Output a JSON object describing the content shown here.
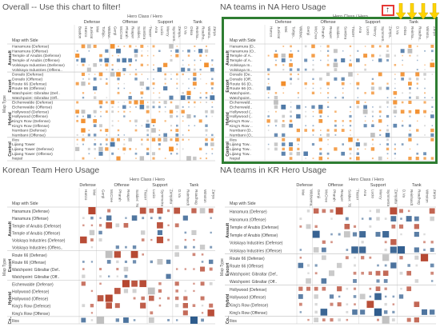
{
  "panels": [
    {
      "id": "overall",
      "title": "Overall -- Use this chart to filter!",
      "hero_class_header": "Hero Class / Hero",
      "row_header": "Map with Side",
      "map_type_label": "Map Type",
      "classes": [
        {
          "name": "Defense",
          "heroes": [
            "Bastion",
            "Hanzo",
            "Junkrat",
            "Mei",
            "Torbjo..",
            "Widow.."
          ]
        },
        {
          "name": "Offense",
          "heroes": [
            "Genji",
            "McCree",
            "Pharah",
            "Reaper",
            "Soldier..",
            "Sombra",
            "Tracer"
          ]
        },
        {
          "name": "Support",
          "heroes": [
            "Ana",
            "Lucio",
            "Mercy",
            "Symmetr..",
            "Zenya.."
          ]
        },
        {
          "name": "Tank",
          "heroes": [
            "D.Va",
            "Orisa",
            "Reinha..",
            "Roadho..",
            "Winsto..",
            "Zarya"
          ]
        }
      ],
      "groups": [
        {
          "name": "Assault",
          "rows": [
            "Hanamura (Defense)",
            "Hanamura (Offense)",
            "Temple of Anubis (Defense)",
            "Temple of Anubis (Offense)",
            "Volskaya Industries (Defense)",
            "Volskaya Industries (Offens.."
          ]
        },
        {
          "name": "Escort",
          "rows": [
            "Dorado (Defense)",
            "Dorado (Offense)",
            "Route 66 (Defense)",
            "Route 66 (Offense)",
            "Watchpoint: Gibraltar (Def..",
            "Watchpoint: Gibraltar (Off.."
          ]
        },
        {
          "name": "Hybrid",
          "rows": [
            "Eichenwalde (Defense)",
            "Eichenwalde (Offense)",
            "Hollywood (Defense)",
            "Hollywood (Offense)",
            "King's Row (Defense)",
            "King's Row (Offense)",
            "Numbani (Defense)",
            "Numbani (Offense)"
          ]
        },
        {
          "name": "Control",
          "rows": [
            "Ilios",
            "Lijiang Tower",
            "Lijiang Tower (Defense)",
            "Lijiang Tower (Offense)",
            "Nepal"
          ]
        }
      ],
      "seed": 7
    },
    {
      "id": "na",
      "title": "NA teams in NA Hero Usage",
      "hero_class_header": "Hero Class / Hero",
      "row_header": "Map with Side",
      "map_type_label": "",
      "classes": [
        {
          "name": "Defense",
          "heroes": [
            "Hanzo",
            "Junkrat",
            "Mei",
            "Torbjo..",
            "Widow.."
          ]
        },
        {
          "name": "Offense",
          "heroes": [
            "Genji",
            "McCree",
            "Pharah",
            "Reaper",
            "Soldier..",
            "Sombra",
            "Tracer"
          ]
        },
        {
          "name": "Support",
          "heroes": [
            "Ana",
            "Lucio",
            "Mercy",
            "Symmetr..",
            "Zenya.."
          ]
        },
        {
          "name": "Tank",
          "heroes": [
            "D.Va",
            "Orisa",
            "Reinha..",
            "Roadho..",
            "Winsto..",
            "Zarya"
          ]
        }
      ],
      "groups": [
        {
          "name": "Assault",
          "rows": [
            "Hanamura (D..",
            "Hanamura (O..",
            "Temple of A..",
            "Temple of A..",
            "Volskaya In..",
            "Volskaya In.."
          ]
        },
        {
          "name": "Escort",
          "rows": [
            "Dorado (De..",
            "Dorado (Off..",
            "Route 66 (D..",
            "Route 66 (O..",
            "Watchpoint..",
            "Watchpoint.."
          ]
        },
        {
          "name": "Hybrid",
          "rows": [
            "Eichenwald..",
            "Eichenwald..",
            "Hollywood (..",
            "Hollywood (..",
            "King's Row ..",
            "King's Row ..",
            "Numbani (D..",
            "Numbani (O.."
          ]
        },
        {
          "name": "Control",
          "rows": [
            "Ilios",
            "Lijiang Tow..",
            "Lijiang Tow..",
            "Lijiang Tow..",
            "Nepal"
          ]
        }
      ],
      "seed": 23
    },
    {
      "id": "kr",
      "title": "Korean Team Hero Usage",
      "hero_class_header": "Hero Class / Hero",
      "row_header": "Map with Side",
      "map_type_label": "Map Type",
      "classes": [
        {
          "name": "Defense",
          "heroes": [
            "Hanzo",
            "Mei"
          ]
        },
        {
          "name": "Offense",
          "heroes": [
            "Genji",
            "McCree",
            "Pharah",
            "Reaper",
            "Soldier: 76",
            "Tracer"
          ]
        },
        {
          "name": "Support",
          "heroes": [
            "Lucio",
            "Symmetra",
            "Zenyatta"
          ]
        },
        {
          "name": "Tank",
          "heroes": [
            "D.Va",
            "Reinhardt",
            "Roadhog",
            "Winston",
            "Zarya"
          ]
        }
      ],
      "groups": [
        {
          "name": "Assault",
          "rows": [
            "Hanamura (Defense)",
            "Hanamura (Offense)",
            "Temple of Anubis (Defense)",
            "Temple of Anubis (Offense)",
            "Volskaya Industries (Defense)",
            "Volskaya Industries (Offens.."
          ]
        },
        {
          "name": "Escort",
          "rows": [
            "Route 66 (Defense)",
            "Route 66 (Offense)",
            "Watchpoint: Gibraltar (Def..",
            "Watchpoint: Gibraltar (Off.."
          ]
        },
        {
          "name": "Hybrid",
          "rows": [
            "Eichenwalde (Defense)",
            "Hollywood (Defense)",
            "Hollywood (Offense)",
            "King's Row (Defense)",
            "King's Row (Offense)"
          ]
        },
        {
          "name": "Co..",
          "rows": [
            "Ilios"
          ]
        }
      ],
      "seed": 41
    },
    {
      "id": "nakr",
      "title": "NA teams in KR  Hero Usage",
      "hero_class_header": "Hero Class / Hero",
      "row_header": "Map with Side",
      "map_type_label": "Map Type",
      "classes": [
        {
          "name": "Defense",
          "heroes": [
            "Mei",
            "Widowma.."
          ]
        },
        {
          "name": "Offense",
          "heroes": [
            "Genji",
            "McCree",
            "Pharah",
            "Reaper",
            "Soldier: 76",
            "Tracer"
          ]
        },
        {
          "name": "Support",
          "heroes": [
            "Ana",
            "Lucio",
            "Mercy",
            "Symmetra",
            "Zenyatta"
          ]
        },
        {
          "name": "Tank",
          "heroes": [
            "D.Va",
            "Reinhardt",
            "Roadhog",
            "Winston",
            "Zarya"
          ]
        }
      ],
      "groups": [
        {
          "name": "Assault",
          "rows": [
            "Hanamura (Defense)",
            "Hanamura (Offense)",
            "Temple of Anubis (Defense)",
            "Temple of Anubis (Offense)",
            "Volskaya Industries (Defense)",
            "Volskaya Industries (Offense)"
          ]
        },
        {
          "name": "Escort",
          "rows": [
            "Route 66 (Defense)",
            "Route 66 (Offense)",
            "Watchpoint: Gibraltar (Def..",
            "Watchpoint: Gibraltar (Off.."
          ]
        },
        {
          "name": "Hybrid",
          "rows": [
            "Hollywood (Defense)",
            "Hollywood (Offense)",
            "King's Row (Defense)",
            "King's Row (Offense)"
          ]
        },
        {
          "name": "Co..",
          "rows": [
            "Ilios"
          ]
        }
      ],
      "seed": 59
    }
  ],
  "filter_badge": "↑",
  "colors": {
    "defense_side": "#f28e2b",
    "offense_side": "#4e79a7",
    "kr_defense_side": "#b5452e",
    "kr_offense_side": "#2c5a8c",
    "neutral": "#bfbfbf",
    "highlight": "#2e7d32",
    "filter_border": "#e53935",
    "arrow": "#ffd400"
  },
  "icons": [
    "filter-icon",
    "arrow-down-icon"
  ]
}
